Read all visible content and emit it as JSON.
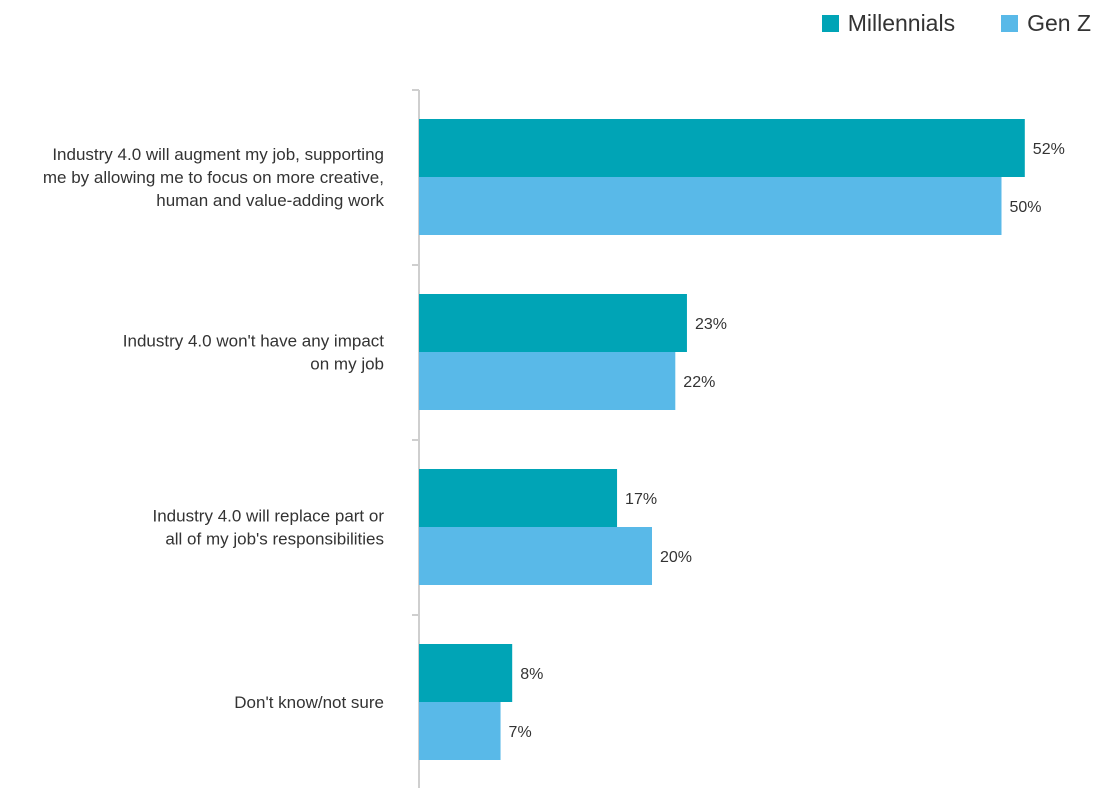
{
  "chart_data": {
    "type": "bar",
    "orientation": "horizontal",
    "categories": [
      [
        "Industry 4.0 will augment my job, supporting",
        "me by allowing me to focus on more creative,",
        "human and value-adding work"
      ],
      [
        "Industry 4.0 won't have any impact",
        "on my job"
      ],
      [
        "Industry 4.0 will replace part or",
        "all of my job's responsibilities"
      ],
      [
        "Don't know/not sure"
      ]
    ],
    "series": [
      {
        "name": "Millennials",
        "color": "#00A4B6",
        "values": [
          52,
          23,
          17,
          8
        ],
        "labels": [
          "52%",
          "23%",
          "17%",
          "8%"
        ]
      },
      {
        "name": "Gen Z",
        "color": "#59B9E8",
        "values": [
          50,
          22,
          20,
          7
        ],
        "labels": [
          "50%",
          "22%",
          "20%",
          "7%"
        ]
      }
    ],
    "xlim": [
      0,
      52
    ],
    "grid": false,
    "legend_position": "top-right"
  }
}
